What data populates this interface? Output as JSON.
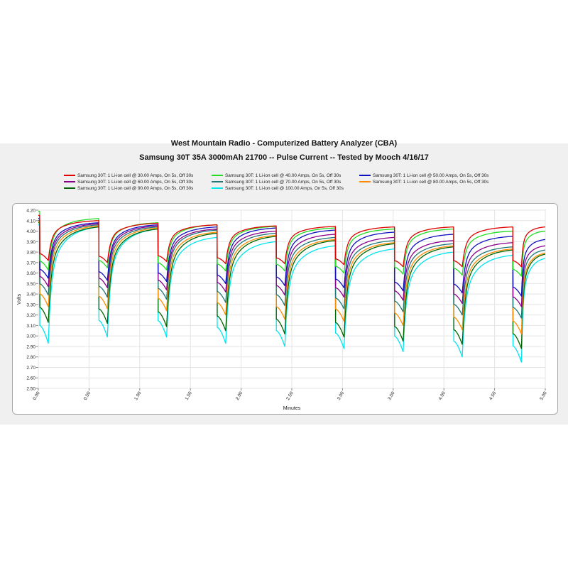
{
  "chart_data": {
    "type": "line",
    "title": "West Mountain Radio - Computerized Battery Analyzer (CBA)",
    "subtitle": "Samsung 30T 35A 3000mAh 21700 -- Pulse Current -- Tested by Mooch 4/16/17",
    "xlabel": "Minutes",
    "ylabel": "Volts",
    "xlim": [
      0,
      5
    ],
    "ylim": [
      2.5,
      4.2
    ],
    "xticks": [
      "0.00",
      "0.50",
      "1.00",
      "1.50",
      "2.00",
      "2.50",
      "3.00",
      "3.50",
      "4.00",
      "4.50",
      "5.00"
    ],
    "yticks": [
      "2.50",
      "2.60",
      "2.70",
      "2.80",
      "2.90",
      "3.00",
      "3.10",
      "3.20",
      "3.30",
      "3.40",
      "3.50",
      "3.60",
      "3.70",
      "3.80",
      "3.90",
      "4.00",
      "4.10",
      "4.20"
    ],
    "grid": true,
    "legend_position": "top",
    "pulse_starts": [
      0.013,
      0.596,
      1.18,
      1.763,
      2.346,
      2.93,
      3.513,
      4.096,
      4.68
    ],
    "pulse_duration": 0.083,
    "series": [
      {
        "name": "Samsung 30T: 1 Li-ion cell @ 30.00 Amps, On 5s, Off 30s",
        "color": "#e00000",
        "rest": [
          4.15,
          4.1,
          4.075,
          4.06,
          4.05,
          4.045,
          4.04,
          4.04,
          4.04,
          4.04
        ],
        "pulse_end": [
          3.72,
          3.7,
          3.71,
          3.69,
          3.69,
          3.68,
          3.66,
          3.66,
          3.66
        ]
      },
      {
        "name": "Samsung 30T: 1 Li-ion cell @ 40.00 Amps, On 5s, Off 30s",
        "color": "#22dd22",
        "rest": [
          4.19,
          4.12,
          4.08,
          4.06,
          4.045,
          4.03,
          4.02,
          4.02,
          4.0,
          4.0
        ],
        "pulse_end": [
          3.63,
          3.65,
          3.63,
          3.62,
          3.62,
          3.6,
          3.59,
          3.58,
          3.57
        ]
      },
      {
        "name": "Samsung 30T: 1 Li-ion cell @ 50.00 Amps, On 5s, Off 30s",
        "color": "#1010c0",
        "rest": [
          4.12,
          4.08,
          4.06,
          4.04,
          4.03,
          4.01,
          3.99,
          3.97,
          3.95,
          3.92
        ],
        "pulse_end": [
          3.55,
          3.53,
          3.52,
          3.5,
          3.48,
          3.46,
          3.43,
          3.41,
          3.38
        ]
      },
      {
        "name": "Samsung 30T: 1 Li-ion cell @ 60.00 Amps, On 5s, Off 30s",
        "color": "#8b008b",
        "rest": [
          4.12,
          4.07,
          4.05,
          4.02,
          4.0,
          3.97,
          3.94,
          3.91,
          3.89,
          3.86
        ],
        "pulse_end": [
          3.47,
          3.46,
          3.44,
          3.42,
          3.39,
          3.37,
          3.34,
          3.31,
          3.28
        ]
      },
      {
        "name": "Samsung 30T: 1 Li-ion cell @ 70.00 Amps, On 5s, Off 30s",
        "color": "#227777",
        "rest": [
          4.1,
          4.06,
          4.04,
          4.01,
          3.98,
          3.94,
          3.91,
          3.88,
          3.85,
          3.82
        ],
        "pulse_end": [
          3.39,
          3.37,
          3.35,
          3.32,
          3.29,
          3.26,
          3.23,
          3.2,
          3.17
        ]
      },
      {
        "name": "Samsung 30T: 1 Li-ion cell @ 80.00 Amps, On 5s, Off 30s",
        "color": "#ff8c00",
        "rest": [
          4.09,
          4.05,
          4.03,
          3.99,
          3.96,
          3.92,
          3.89,
          3.86,
          3.83,
          3.79
        ],
        "pulse_end": [
          3.28,
          3.26,
          3.24,
          3.2,
          3.16,
          3.14,
          3.1,
          3.06,
          3.02
        ]
      },
      {
        "name": "Samsung 30T: 1 Li-ion cell @ 90.00 Amps, On 5s, Off 30s",
        "color": "#006400",
        "rest": [
          4.08,
          4.04,
          4.02,
          3.98,
          3.95,
          3.91,
          3.88,
          3.85,
          3.82,
          3.78
        ],
        "pulse_end": [
          3.13,
          3.12,
          3.09,
          3.05,
          3.02,
          2.99,
          2.95,
          2.92,
          2.88
        ]
      },
      {
        "name": "Samsung 30T: 1 Li-ion cell @ 100.00 Amps, On 5s, Off 30s",
        "color": "#00e5ee",
        "rest": [
          4.06,
          4.04,
          4.02,
          3.94,
          3.9,
          3.86,
          3.83,
          3.8,
          3.77,
          3.74
        ],
        "pulse_end": [
          2.93,
          2.99,
          2.99,
          2.93,
          2.9,
          2.88,
          2.85,
          2.8,
          2.75
        ]
      }
    ]
  }
}
